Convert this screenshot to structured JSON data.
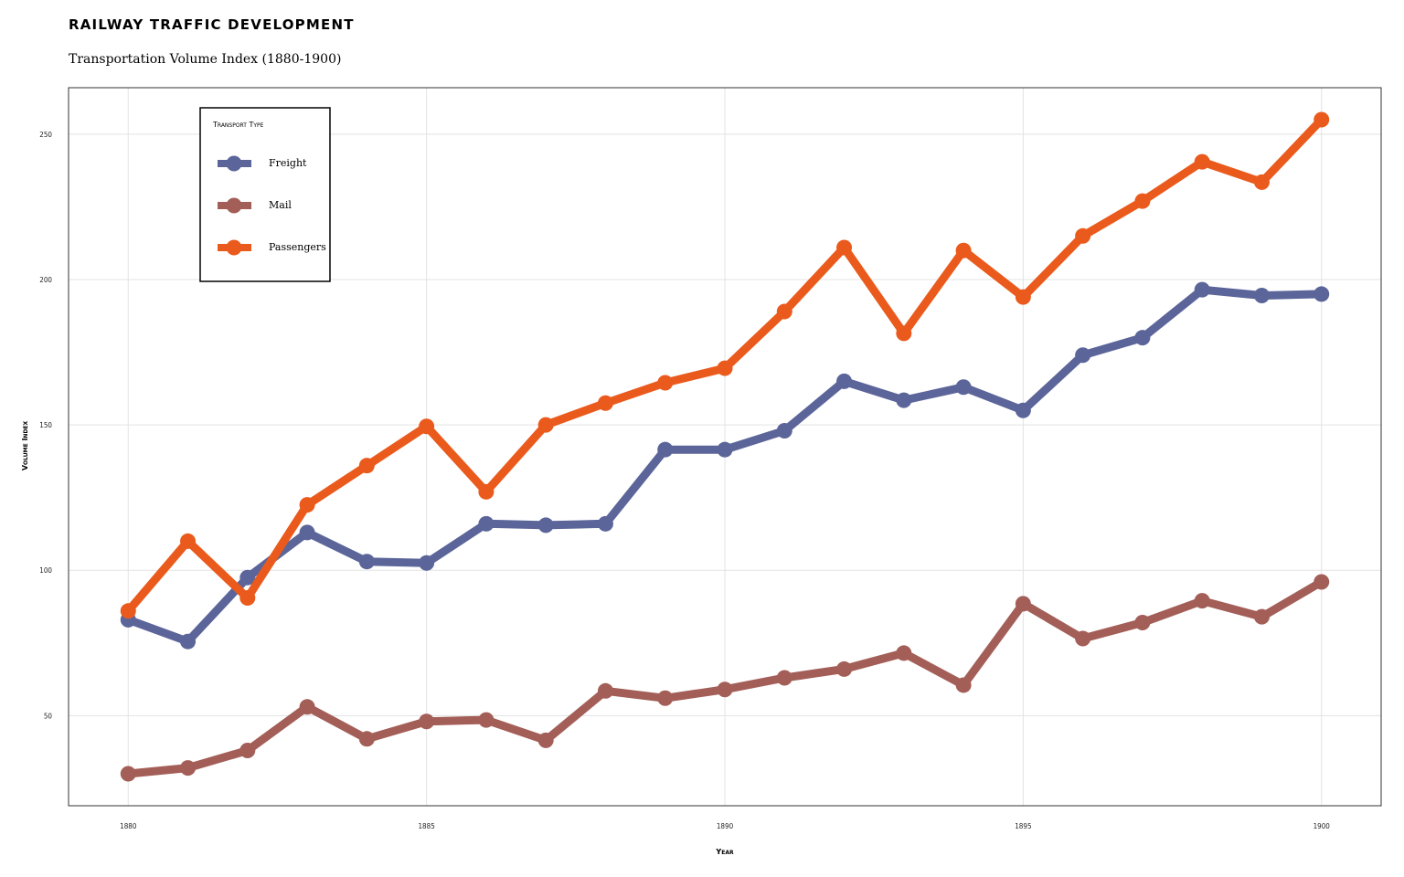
{
  "chart_data": {
    "type": "line",
    "title": "RAILWAY TRAFFIC DEVELOPMENT",
    "subtitle": "Transportation Volume Index (1880-1900)",
    "xlabel": "Year",
    "ylabel": "Volume Index",
    "xlim": [
      1879,
      1901
    ],
    "ylim": [
      19,
      266
    ],
    "xticks": [
      1880,
      1885,
      1890,
      1895,
      1900
    ],
    "yticks": [
      50,
      100,
      150,
      200,
      250
    ],
    "grid": true,
    "legend_title": "Transport Type",
    "legend_position": "top-left",
    "x": [
      1880,
      1881,
      1882,
      1883,
      1884,
      1885,
      1886,
      1887,
      1888,
      1889,
      1890,
      1891,
      1892,
      1893,
      1894,
      1895,
      1896,
      1897,
      1898,
      1899,
      1900
    ],
    "series": [
      {
        "name": "Freight",
        "color": "#5b6599",
        "values": [
          83,
          75.5,
          97.5,
          113,
          103,
          102.5,
          116,
          115.5,
          116,
          141.5,
          141.5,
          148,
          165,
          158.5,
          163,
          155,
          174,
          180,
          196.5,
          194.5,
          195
        ]
      },
      {
        "name": "Mail",
        "color": "#a35e57",
        "values": [
          30,
          32,
          38,
          53,
          42,
          48,
          48.5,
          41.5,
          58.5,
          56,
          59,
          63,
          66,
          71.5,
          60.5,
          88.5,
          76.5,
          82,
          89.5,
          84,
          96
        ]
      },
      {
        "name": "Passengers",
        "color": "#ea5a1c",
        "values": [
          86,
          110,
          90.5,
          122.5,
          136,
          149.5,
          127,
          150,
          157.5,
          164.5,
          169.5,
          189,
          211,
          181.5,
          210,
          194,
          215,
          227,
          240.5,
          233.5,
          255
        ]
      }
    ]
  }
}
